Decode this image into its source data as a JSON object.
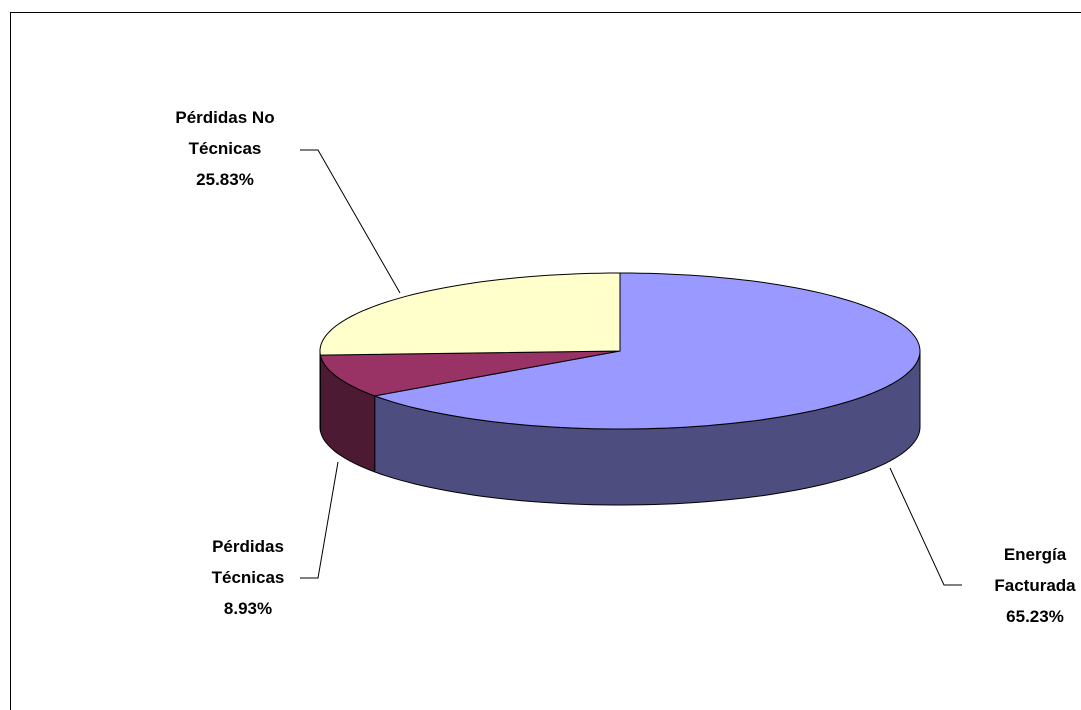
{
  "chart_data": {
    "type": "pie3d",
    "categories": [
      "Energía Facturada",
      "Pérdidas Técnicas",
      "Pérdidas No Técnicas"
    ],
    "values": [
      65.23,
      8.93,
      25.83
    ],
    "value_labels": [
      "65.23%",
      "8.93%",
      "25.83%"
    ],
    "colors": [
      "#9999ff",
      "#993366",
      "#ffffcc"
    ],
    "side_colors": [
      "#4d4d80",
      "#4d1a33",
      "#80806a"
    ]
  }
}
